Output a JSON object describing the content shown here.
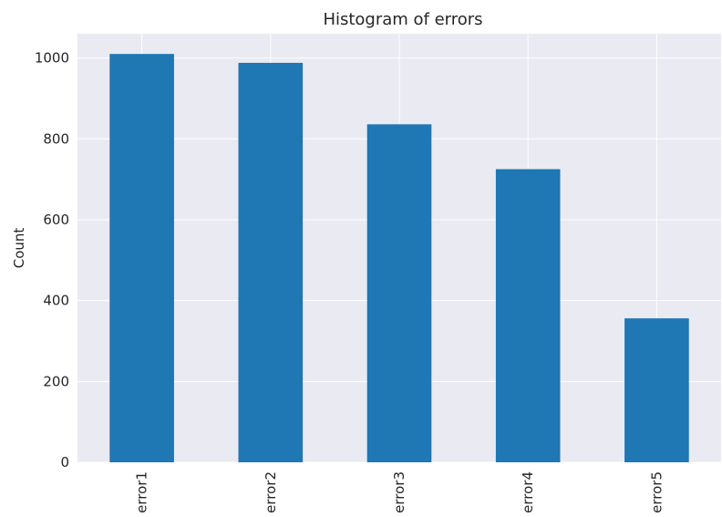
{
  "chart_data": {
    "type": "bar",
    "title": "Histogram of errors",
    "xlabel": "",
    "ylabel": "Count",
    "categories": [
      "error1",
      "error2",
      "error3",
      "error4",
      "error5"
    ],
    "values": [
      1010,
      988,
      836,
      725,
      356
    ],
    "ylim": [
      0,
      1060
    ],
    "yticks": [
      0,
      200,
      400,
      600,
      800,
      1000
    ],
    "grid": true,
    "colors": {
      "bar": "#1f77b4",
      "plot_background": "#eaeaf2",
      "grid": "#ffffff",
      "text": "#262626"
    }
  }
}
